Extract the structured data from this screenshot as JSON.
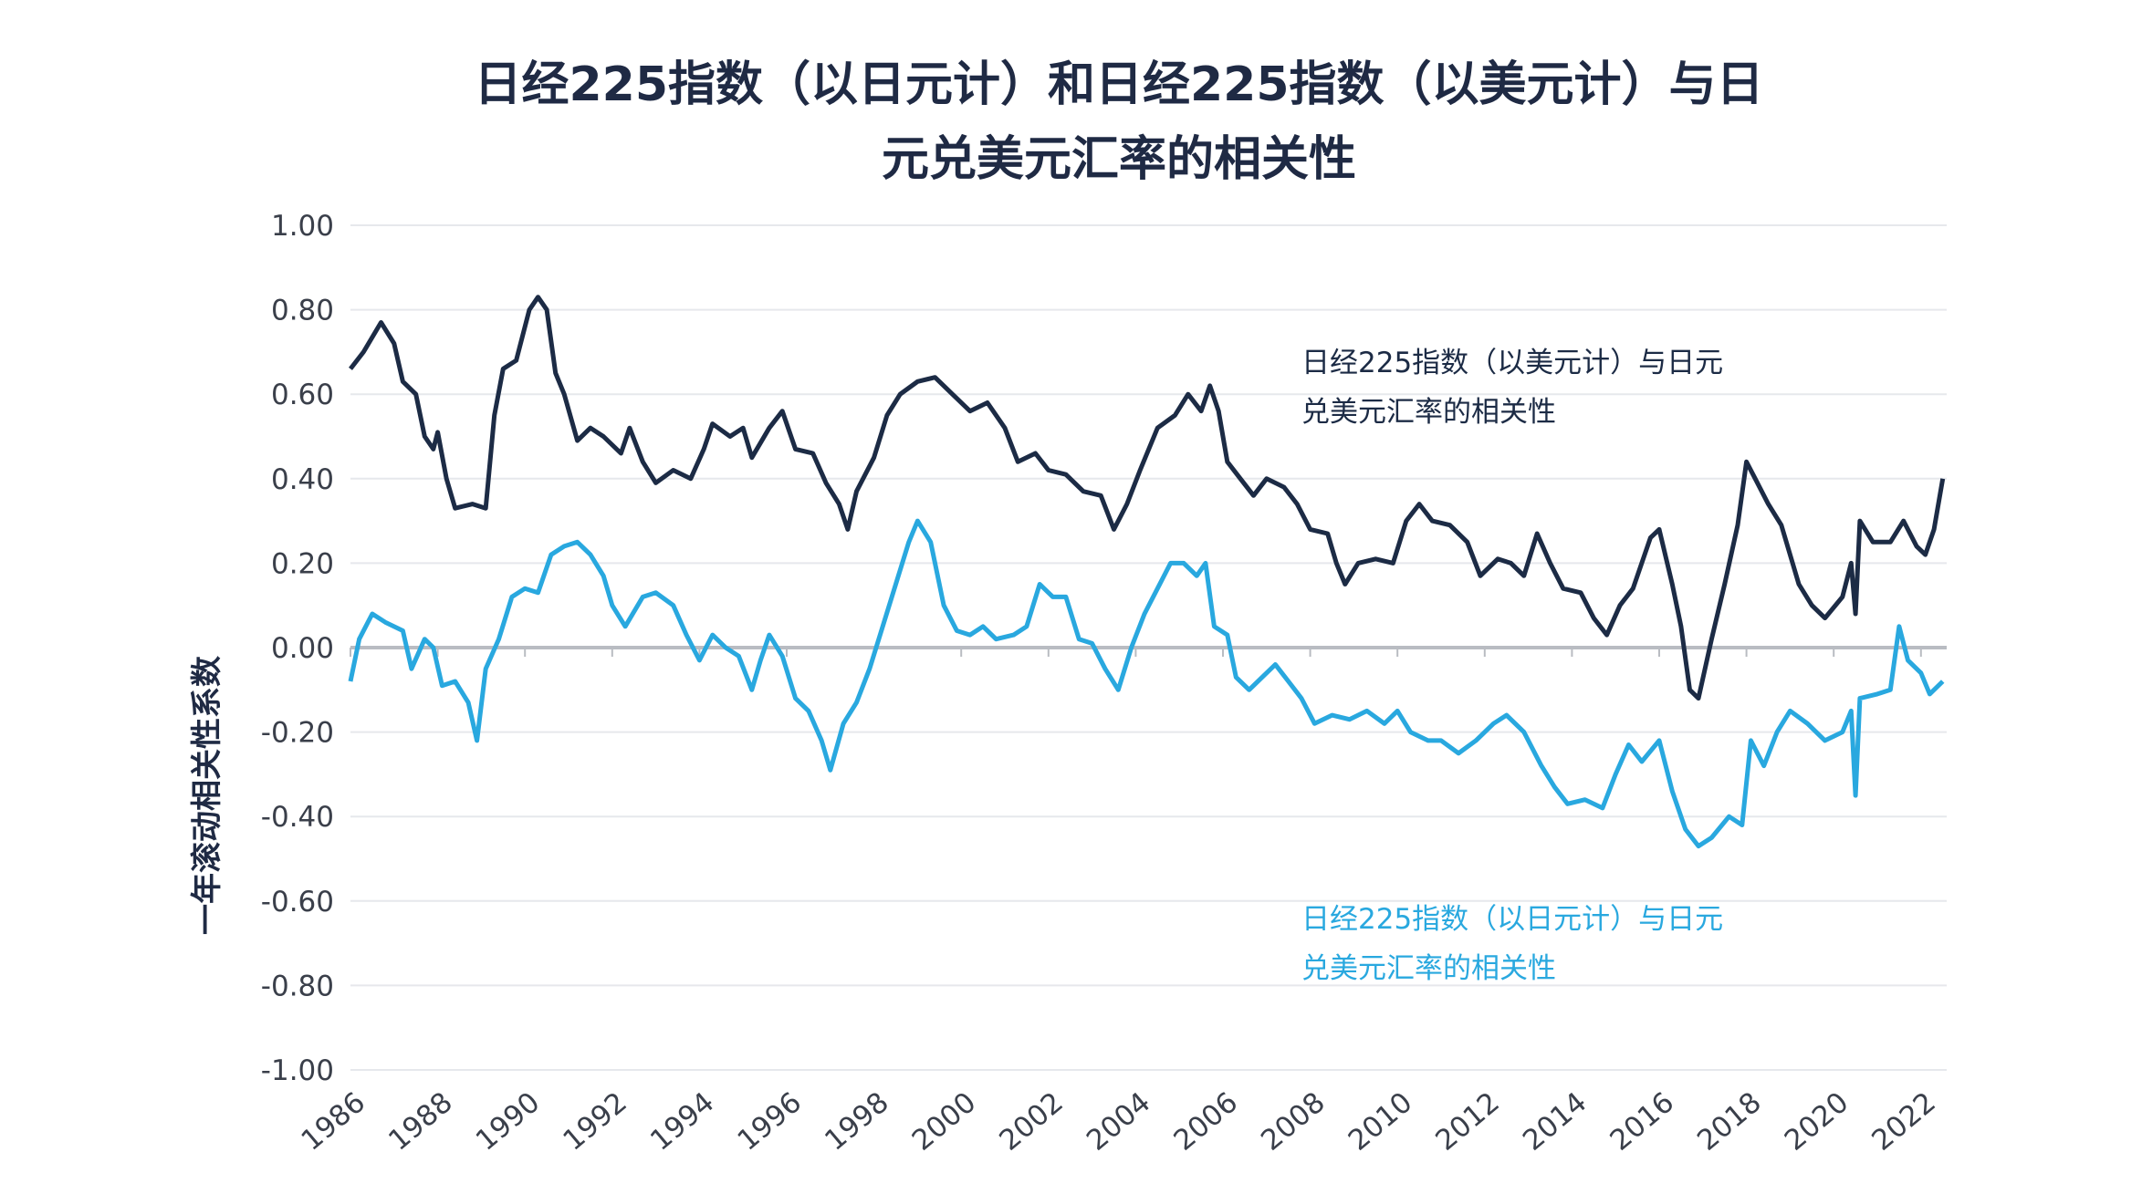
{
  "chart_data": {
    "type": "line",
    "title": "日经225指数（以日元计）和日经225指数（以美元计）与日元兑美元汇率的相关性",
    "title_lines": [
      "日经225指数（以日元计）和日经225指数（以美元计）与日",
      "元兑美元汇率的相关性"
    ],
    "xlabel": "",
    "ylabel": "一年滚动相关性系数",
    "xlim": [
      1986,
      2022.6
    ],
    "ylim": [
      -1.0,
      1.0
    ],
    "x_ticks": [
      "1986",
      "1988",
      "1990",
      "1992",
      "1994",
      "1996",
      "1998",
      "2000",
      "2002",
      "2004",
      "2006",
      "2008",
      "2010",
      "2012",
      "2014",
      "2016",
      "2018",
      "2020",
      "2022"
    ],
    "y_ticks": [
      "1.00",
      "0.80",
      "0.60",
      "0.40",
      "0.20",
      "0.00",
      "-0.20",
      "-0.40",
      "-0.60",
      "-0.80",
      "-1.00"
    ],
    "grid": "horizontal",
    "series": [
      {
        "name": "日经225指数（以美元计）与日元兑美元汇率的相关性",
        "label_lines": [
          "日经225指数（以美元计）与日元",
          "兑美元汇率的相关性"
        ],
        "color": "#1c2b45",
        "x": [
          1986.0,
          1986.3,
          1986.7,
          1987.0,
          1987.2,
          1987.5,
          1987.7,
          1987.9,
          1988.0,
          1988.2,
          1988.4,
          1988.8,
          1989.1,
          1989.3,
          1989.5,
          1989.8,
          1990.1,
          1990.3,
          1990.5,
          1990.7,
          1990.9,
          1991.2,
          1991.5,
          1991.8,
          1992.2,
          1992.4,
          1992.7,
          1993.0,
          1993.4,
          1993.8,
          1994.1,
          1994.3,
          1994.7,
          1995.0,
          1995.2,
          1995.6,
          1995.9,
          1996.2,
          1996.6,
          1996.9,
          1997.2,
          1997.4,
          1997.6,
          1998.0,
          1998.3,
          1998.6,
          1999.0,
          1999.4,
          1999.8,
          2000.2,
          2000.6,
          2001.0,
          2001.3,
          2001.7,
          2002.0,
          2002.4,
          2002.8,
          2003.2,
          2003.5,
          2003.8,
          2004.1,
          2004.5,
          2004.9,
          2005.2,
          2005.5,
          2005.7,
          2005.9,
          2006.1,
          2006.4,
          2006.7,
          2007.0,
          2007.4,
          2007.7,
          2008.0,
          2008.4,
          2008.6,
          2008.8,
          2009.1,
          2009.5,
          2009.9,
          2010.2,
          2010.5,
          2010.8,
          2011.2,
          2011.6,
          2011.9,
          2012.3,
          2012.6,
          2012.9,
          2013.2,
          2013.5,
          2013.8,
          2014.2,
          2014.5,
          2014.8,
          2015.1,
          2015.4,
          2015.8,
          2016.0,
          2016.3,
          2016.5,
          2016.7,
          2016.9,
          2017.2,
          2017.5,
          2017.8,
          2018.0,
          2018.2,
          2018.5,
          2018.8,
          2019.2,
          2019.5,
          2019.8,
          2020.2,
          2020.4,
          2020.5,
          2020.6,
          2020.9,
          2021.3,
          2021.6,
          2021.9,
          2022.1,
          2022.3,
          2022.5
        ],
        "values": [
          0.66,
          0.7,
          0.77,
          0.72,
          0.63,
          0.6,
          0.5,
          0.47,
          0.51,
          0.4,
          0.33,
          0.34,
          0.33,
          0.55,
          0.66,
          0.68,
          0.8,
          0.83,
          0.8,
          0.65,
          0.6,
          0.49,
          0.52,
          0.5,
          0.46,
          0.52,
          0.44,
          0.39,
          0.42,
          0.4,
          0.47,
          0.53,
          0.5,
          0.52,
          0.45,
          0.52,
          0.56,
          0.47,
          0.46,
          0.39,
          0.34,
          0.28,
          0.37,
          0.45,
          0.55,
          0.6,
          0.63,
          0.64,
          0.6,
          0.56,
          0.58,
          0.52,
          0.44,
          0.46,
          0.42,
          0.41,
          0.37,
          0.36,
          0.28,
          0.34,
          0.42,
          0.52,
          0.55,
          0.6,
          0.56,
          0.62,
          0.56,
          0.44,
          0.4,
          0.36,
          0.4,
          0.38,
          0.34,
          0.28,
          0.27,
          0.2,
          0.15,
          0.2,
          0.21,
          0.2,
          0.3,
          0.34,
          0.3,
          0.29,
          0.25,
          0.17,
          0.21,
          0.2,
          0.17,
          0.27,
          0.2,
          0.14,
          0.13,
          0.07,
          0.03,
          0.1,
          0.14,
          0.26,
          0.28,
          0.15,
          0.05,
          -0.1,
          -0.12,
          0.02,
          0.15,
          0.29,
          0.44,
          0.4,
          0.34,
          0.29,
          0.15,
          0.1,
          0.07,
          0.12,
          0.2,
          0.08,
          0.3,
          0.25,
          0.25,
          0.3,
          0.24,
          0.22,
          0.28,
          0.4
        ]
      },
      {
        "name": "日经225指数（以日元计）与日元兑美元汇率的相关性",
        "label_lines": [
          "日经225指数（以日元计）与日元",
          "兑美元汇率的相关性"
        ],
        "color": "#29a8df",
        "x": [
          1986.0,
          1986.2,
          1986.5,
          1986.8,
          1987.2,
          1987.4,
          1987.7,
          1987.9,
          1988.1,
          1988.4,
          1988.7,
          1988.9,
          1989.1,
          1989.4,
          1989.7,
          1990.0,
          1990.3,
          1990.6,
          1990.9,
          1991.2,
          1991.5,
          1991.8,
          1992.0,
          1992.3,
          1992.7,
          1993.0,
          1993.4,
          1993.7,
          1994.0,
          1994.3,
          1994.6,
          1994.9,
          1995.2,
          1995.4,
          1995.6,
          1995.9,
          1996.2,
          1996.5,
          1996.8,
          1997.0,
          1997.3,
          1997.6,
          1997.9,
          1998.2,
          1998.5,
          1998.8,
          1999.0,
          1999.3,
          1999.6,
          1999.9,
          2000.2,
          2000.5,
          2000.8,
          2001.2,
          2001.5,
          2001.8,
          2002.1,
          2002.4,
          2002.7,
          2003.0,
          2003.3,
          2003.6,
          2003.9,
          2004.2,
          2004.5,
          2004.8,
          2005.1,
          2005.4,
          2005.6,
          2005.8,
          2006.1,
          2006.3,
          2006.6,
          2006.9,
          2007.2,
          2007.5,
          2007.8,
          2008.1,
          2008.5,
          2008.9,
          2009.3,
          2009.7,
          2010.0,
          2010.3,
          2010.7,
          2011.0,
          2011.4,
          2011.8,
          2012.2,
          2012.5,
          2012.9,
          2013.3,
          2013.6,
          2013.9,
          2014.3,
          2014.7,
          2015.0,
          2015.3,
          2015.6,
          2016.0,
          2016.3,
          2016.6,
          2016.9,
          2017.2,
          2017.6,
          2017.9,
          2018.1,
          2018.4,
          2018.7,
          2019.0,
          2019.4,
          2019.8,
          2020.2,
          2020.4,
          2020.5,
          2020.6,
          2021.0,
          2021.3,
          2021.5,
          2021.7,
          2022.0,
          2022.2,
          2022.5
        ],
        "values": [
          -0.08,
          0.02,
          0.08,
          0.06,
          0.04,
          -0.05,
          0.02,
          0.0,
          -0.09,
          -0.08,
          -0.13,
          -0.22,
          -0.05,
          0.02,
          0.12,
          0.14,
          0.13,
          0.22,
          0.24,
          0.25,
          0.22,
          0.17,
          0.1,
          0.05,
          0.12,
          0.13,
          0.1,
          0.03,
          -0.03,
          0.03,
          0.0,
          -0.02,
          -0.1,
          -0.03,
          0.03,
          -0.02,
          -0.12,
          -0.15,
          -0.22,
          -0.29,
          -0.18,
          -0.13,
          -0.05,
          0.05,
          0.15,
          0.25,
          0.3,
          0.25,
          0.1,
          0.04,
          0.03,
          0.05,
          0.02,
          0.03,
          0.05,
          0.15,
          0.12,
          0.12,
          0.02,
          0.01,
          -0.05,
          -0.1,
          0.0,
          0.08,
          0.14,
          0.2,
          0.2,
          0.17,
          0.2,
          0.05,
          0.03,
          -0.07,
          -0.1,
          -0.07,
          -0.04,
          -0.08,
          -0.12,
          -0.18,
          -0.16,
          -0.17,
          -0.15,
          -0.18,
          -0.15,
          -0.2,
          -0.22,
          -0.22,
          -0.25,
          -0.22,
          -0.18,
          -0.16,
          -0.2,
          -0.28,
          -0.33,
          -0.37,
          -0.36,
          -0.38,
          -0.3,
          -0.23,
          -0.27,
          -0.22,
          -0.34,
          -0.43,
          -0.47,
          -0.45,
          -0.4,
          -0.42,
          -0.22,
          -0.28,
          -0.2,
          -0.15,
          -0.18,
          -0.22,
          -0.2,
          -0.15,
          -0.35,
          -0.12,
          -0.11,
          -0.1,
          0.05,
          -0.03,
          -0.06,
          -0.11,
          -0.08
        ]
      }
    ],
    "colors": {
      "gridline": "#e6e8ec",
      "zero_line": "#b9bcc2",
      "text": "#1f2a44"
    }
  }
}
